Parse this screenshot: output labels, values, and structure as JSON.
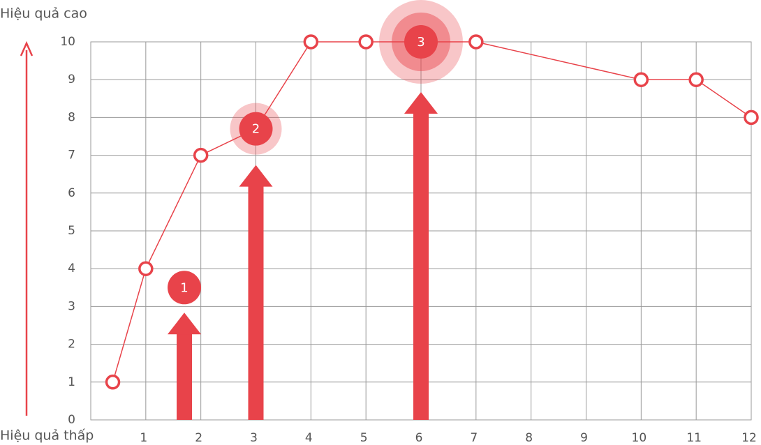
{
  "chart_data": {
    "type": "line",
    "top_label": "Hiệu quả cao",
    "bottom_label": "Hiệu quả thấp",
    "x": [
      0.4,
      1,
      2,
      3,
      4,
      5,
      6,
      7,
      10,
      11,
      12
    ],
    "series": [
      {
        "color": "#e8434a",
        "values": [
          1,
          4,
          7,
          7.7,
          10,
          10,
          10,
          10,
          9,
          9,
          8
        ]
      }
    ],
    "xlim": [
      0,
      12
    ],
    "xticks": [
      1,
      2,
      3,
      4,
      5,
      6,
      7,
      8,
      9,
      10,
      11,
      12
    ],
    "ylim": [
      0,
      10
    ],
    "yticks": [
      0,
      1,
      2,
      3,
      4,
      5,
      6,
      7,
      8,
      9,
      10
    ],
    "grid": true,
    "annotations": [
      {
        "label": "1",
        "x": 1.7,
        "y": 3.5
      },
      {
        "label": "2",
        "x": 3,
        "y": 7.7
      },
      {
        "label": "3",
        "x": 6,
        "y": 10
      }
    ]
  }
}
